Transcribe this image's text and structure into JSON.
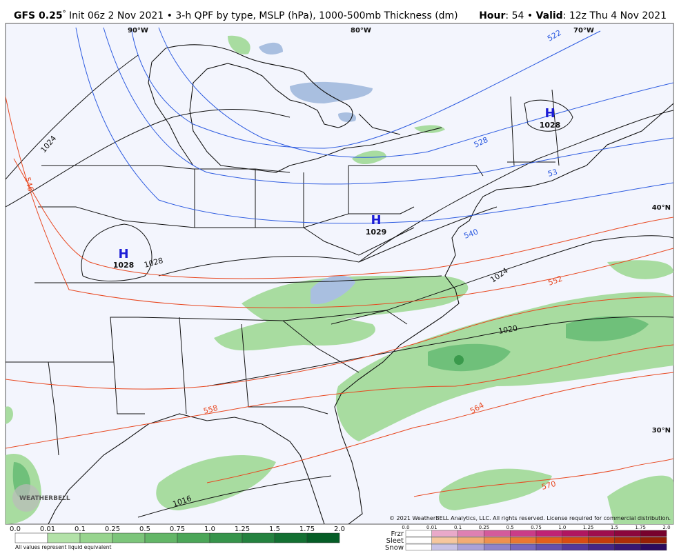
{
  "header": {
    "model": "GFS 0.25",
    "degree": "°",
    "title_rest": " Init 06z 2 Nov 2021 • 3-h QPF by type, MSLP (hPa), 1000-500mb Thickness (dm)",
    "hour_label": "Hour",
    "hour_value": ": 54 • ",
    "valid_label": "Valid",
    "valid_value": ": 12z Thu 4 Nov 2021"
  },
  "map": {
    "longitudes": [
      "90°W",
      "80°W",
      "70°W"
    ],
    "latitudes": [
      "40°N",
      "30°N"
    ],
    "highs": [
      {
        "symbol": "H",
        "pressure": "1028"
      },
      {
        "symbol": "H",
        "pressure": "1029"
      },
      {
        "symbol": "H",
        "pressure": "1028"
      }
    ],
    "isobar_labels": [
      "1024",
      "1028",
      "1024",
      "1020",
      "1016"
    ],
    "thickness_labels": [
      "522",
      "528",
      "53",
      "540",
      "546",
      "552",
      "558",
      "564",
      "570"
    ],
    "logo": "WEATHERBELL",
    "copyright": "© 2021 WeatherBELL Analytics, LLC. All rights reserved. License required for commercial distribution."
  },
  "legend": {
    "qpf_ticks": [
      "0.0",
      "0.01",
      "0.1",
      "0.25",
      "0.5",
      "0.75",
      "1.0",
      "1.25",
      "1.5",
      "1.75",
      "2.0"
    ],
    "note": "All values represent liquid equivalent",
    "type_ticks": [
      "0.0",
      "0.01",
      "0.1",
      "0.25",
      "0.5",
      "0.75",
      "1.0",
      "1.25",
      "1.5",
      "1.75",
      "2.0"
    ],
    "types": [
      "Frzr",
      "Sleet",
      "Snow"
    ]
  }
}
